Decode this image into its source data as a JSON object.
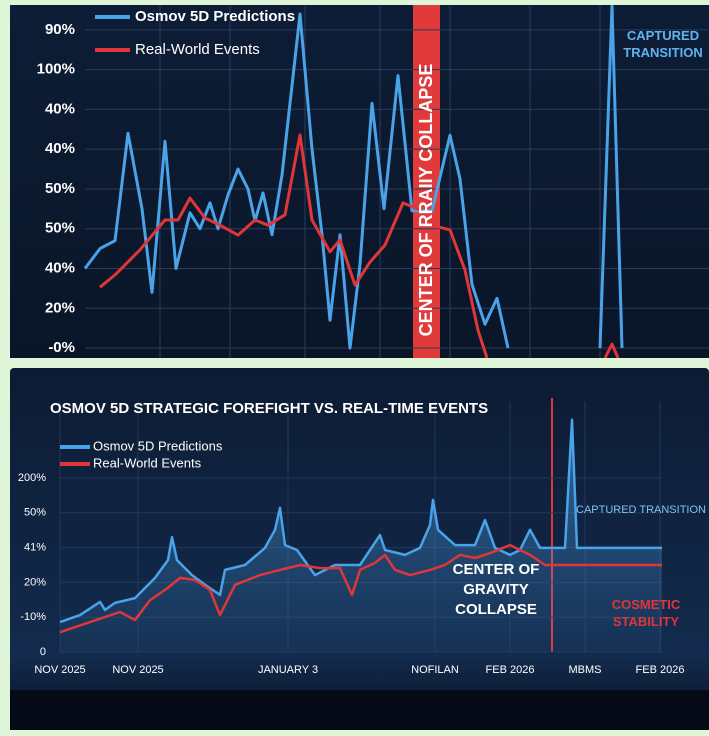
{
  "chart_data": [
    {
      "type": "line",
      "series": [
        {
          "name": "Osmov 5D Predictions",
          "color": "#4aa3e8",
          "x": [
            0,
            0.75,
            1.5,
            2.15,
            2.85,
            3.35,
            4,
            4.55,
            5.25,
            5.75,
            6.25,
            6.65,
            7.15,
            7.65,
            8.15,
            8.5,
            8.9,
            9.35,
            9.85,
            10.75,
            11.35,
            11.85,
            12.25,
            12.75,
            13.25,
            13.75,
            14.35,
            14.95,
            15.65,
            16.35,
            17.35,
            18.25,
            18.75,
            19.35,
            20,
            20.6,
            21.15,
            23,
            25.75,
            26.35,
            26.85
          ],
          "values": [
            2.0,
            2.5,
            2.7,
            5.4,
            3.5,
            1.4,
            5.2,
            2.0,
            3.4,
            3.0,
            3.65,
            3.0,
            3.85,
            4.5,
            4.0,
            3.2,
            3.9,
            2.85,
            4.35,
            8.4,
            5.0,
            2.85,
            0.7,
            2.85,
            0,
            2.1,
            6.15,
            3.5,
            6.85,
            3.45,
            3.45,
            5.35,
            4.25,
            1.6,
            0.6,
            1.25,
            0,
            null,
            0,
            8.6,
            0
          ]
        },
        {
          "name": "Real-World Events",
          "color": "#e0363a",
          "x": [
            0.75,
            1.5,
            2.75,
            4,
            4.65,
            5.25,
            6,
            6.75,
            7.65,
            8.5,
            9.15,
            10,
            10.75,
            11.35,
            12.25,
            12.75,
            13.5,
            14.25,
            15,
            15.9,
            16.75,
            17.35,
            18.25,
            19,
            19.65,
            20.1,
            23,
            26.0,
            26.35,
            26.65
          ],
          "values": [
            1.53,
            1.84,
            2.47,
            3.22,
            3.22,
            3.77,
            3.27,
            3.09,
            2.84,
            3.22,
            3.09,
            3.35,
            5.36,
            3.22,
            2.42,
            2.72,
            1.58,
            2.16,
            2.59,
            3.65,
            3.47,
            3.09,
            2.97,
            1.96,
            0.45,
            -0.25,
            null,
            -0.25,
            0.1,
            -0.25
          ]
        }
      ],
      "xlim": [
        0,
        31.2
      ],
      "xticks": [
        3.75,
        7.25,
        11,
        14.75,
        18.25,
        22.25,
        25.75
      ],
      "ylim": [
        -0.25,
        8.6
      ],
      "yticks": [
        {
          "value": 8,
          "label": "90%"
        },
        {
          "value": 7,
          "label": "100%"
        },
        {
          "value": 6,
          "label": "40%"
        },
        {
          "value": 5,
          "label": "40%"
        },
        {
          "value": 4,
          "label": "50%"
        },
        {
          "value": 3,
          "label": "50%"
        },
        {
          "value": 2,
          "label": "40%"
        },
        {
          "value": 1,
          "label": "20%"
        },
        {
          "value": 0,
          "label": "-0%"
        }
      ],
      "grid": true,
      "annotations": [
        [
          "CENTER OF RRAIIY COLLAPSE"
        ],
        [
          "CAPTURED",
          "TRANSITION"
        ]
      ]
    },
    {
      "type": "line",
      "title": "OSMOV 5D STRATEGIC FOREFIGHT VS. REAL-TIME EVENTS",
      "series": [
        {
          "name": "Osmov 5D Predictions",
          "color": "#4aa3e8",
          "x": [
            0,
            2,
            4,
            4.5,
            5.5,
            7.5,
            9.5,
            10.8,
            11.2,
            11.7,
            13.2,
            14.5,
            16,
            16.5,
            18.5,
            20.5,
            21.5,
            22,
            22.5,
            23.7,
            25.5,
            27.5,
            30,
            32,
            32.5,
            34.5,
            36,
            37,
            37.3,
            37.8,
            39.5,
            41.5,
            42.5,
            43.5,
            45,
            46,
            47,
            48,
            50.5,
            51.2,
            51.7,
            60.2
          ],
          "values": [
            0.86,
            1.06,
            1.44,
            1.21,
            1.41,
            1.55,
            2.13,
            2.64,
            3.3,
            2.64,
            2.21,
            1.93,
            1.64,
            2.36,
            2.5,
            2.99,
            3.51,
            4.14,
            3.07,
            2.93,
            2.21,
            2.5,
            2.5,
            3.36,
            2.93,
            2.79,
            2.99,
            3.65,
            4.37,
            3.51,
            3.07,
            3.07,
            3.79,
            2.99,
            2.79,
            2.93,
            3.51,
            2.99,
            2.99,
            6.67,
            2.99,
            2.99
          ]
        },
        {
          "name": "Real-World Events",
          "color": "#e0363a",
          "x": [
            0,
            3,
            6,
            7.5,
            9,
            10.5,
            12,
            13.5,
            15,
            16,
            17.5,
            20,
            22,
            24,
            26,
            28,
            29.2,
            30,
            31.5,
            32.5,
            33.5,
            35,
            37,
            38.5,
            40,
            41.5,
            43,
            45,
            47,
            48.5,
            60.2
          ],
          "values": [
            0.57,
            0.86,
            1.15,
            0.92,
            1.49,
            1.78,
            2.13,
            2.07,
            1.78,
            1.06,
            1.93,
            2.21,
            2.36,
            2.5,
            2.41,
            2.41,
            1.64,
            2.36,
            2.56,
            2.79,
            2.36,
            2.21,
            2.36,
            2.5,
            2.79,
            2.7,
            2.84,
            3.07,
            2.79,
            2.5,
            2.5
          ]
        }
      ],
      "xlim": [
        0,
        60.2
      ],
      "xticks": [
        {
          "value": 0,
          "label": "NOV 2025"
        },
        {
          "value": 7.8,
          "label": "NOV 2025"
        },
        {
          "value": 22.8,
          "label": "JANUARY 3"
        },
        {
          "value": 37.5,
          "label": "NOFILAN"
        },
        {
          "value": 45,
          "label": "FEB 2026"
        },
        {
          "value": 52.5,
          "label": "MBMS"
        },
        {
          "value": 60,
          "label": "FEB 2026"
        }
      ],
      "ylim": [
        0,
        7.2
      ],
      "yticks": [
        0,
        {
          "value": 1,
          "label": "-10%"
        },
        {
          "value": 2,
          "label": "20%"
        },
        {
          "value": 3,
          "label": "41%"
        },
        {
          "value": 4,
          "label": "50%"
        },
        {
          "value": 5,
          "label": "200%"
        }
      ],
      "grid": true,
      "annotations": [
        [
          "CENTER OF",
          "GRAVITY",
          "COLLAPSE"
        ],
        [
          "CAPTURED TRANSITION"
        ],
        [
          "COSMETIC",
          "STABILITY"
        ]
      ]
    }
  ]
}
